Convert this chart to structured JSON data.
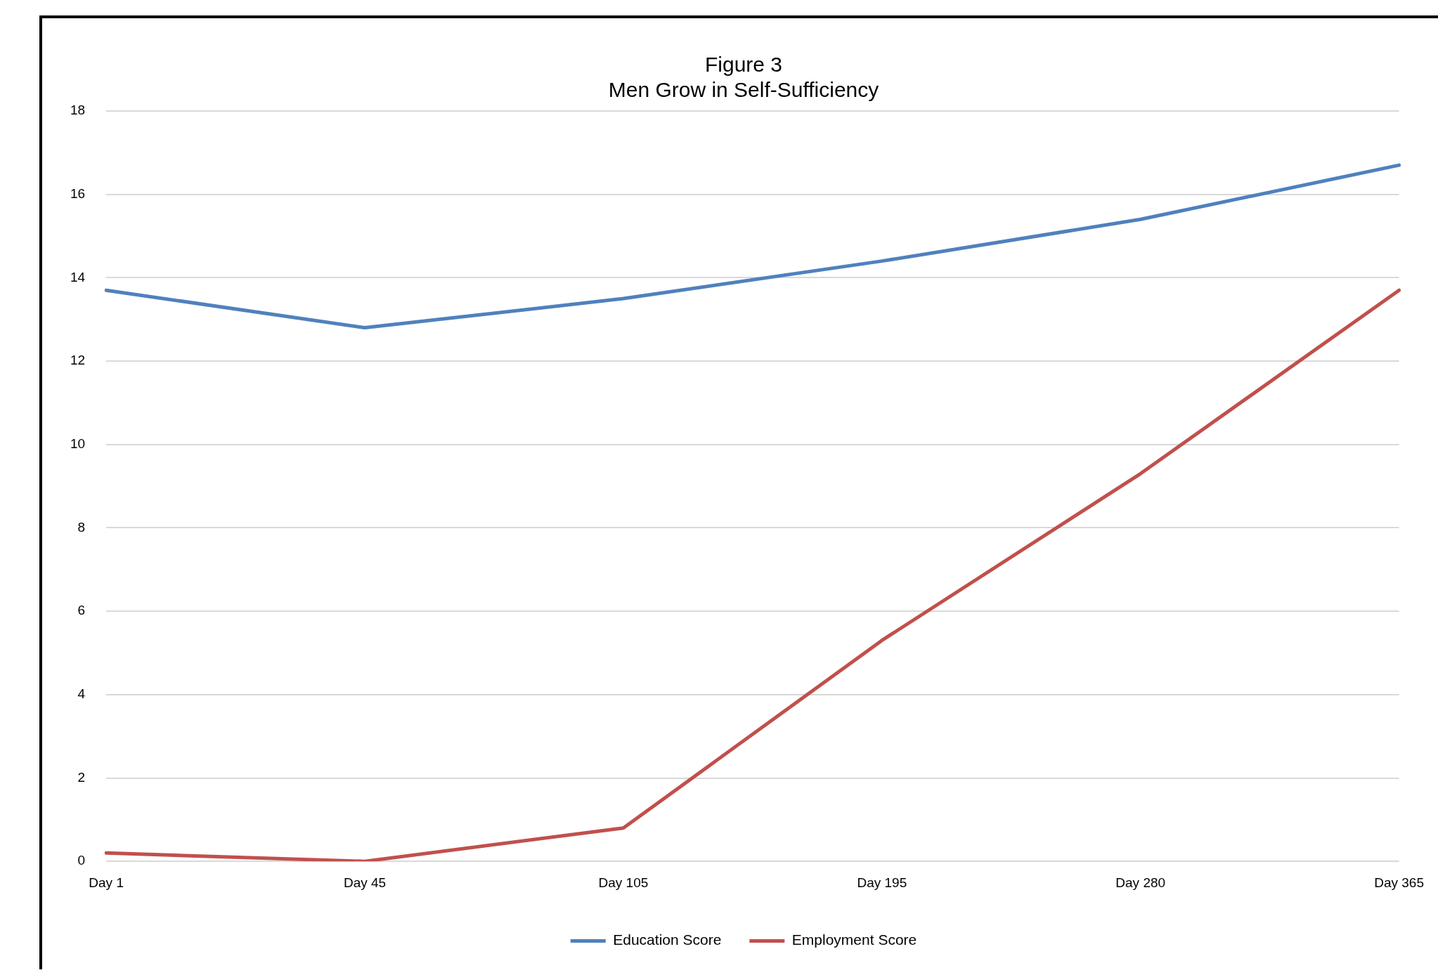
{
  "chart_data": {
    "type": "line",
    "title": [
      "Figure 3",
      "Men Grow in Self-Sufficiency"
    ],
    "categories": [
      "Day 1",
      "Day 45",
      "Day 105",
      "Day 195",
      "Day 280",
      "Day 365"
    ],
    "series": [
      {
        "name": "Education Score",
        "color": "#4f81bd",
        "values": [
          13.7,
          12.8,
          13.5,
          14.4,
          15.4,
          16.7
        ]
      },
      {
        "name": "Employment Score",
        "color": "#c0504d",
        "values": [
          0.2,
          0,
          0.8,
          5.3,
          9.3,
          13.7
        ]
      }
    ],
    "ylim": [
      0,
      18
    ],
    "yticks": [
      0,
      2,
      4,
      6,
      8,
      10,
      12,
      14,
      16,
      18
    ],
    "grid": "y",
    "legend": "bottom",
    "marker": "none",
    "line_style": "solid"
  }
}
